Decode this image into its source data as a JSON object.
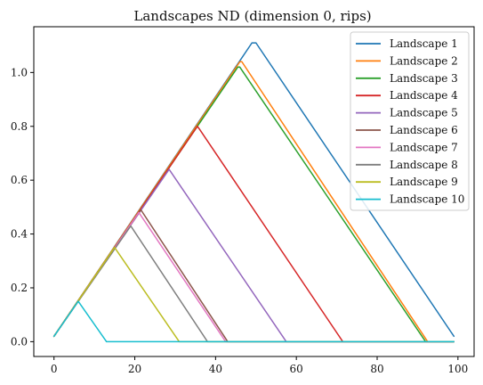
{
  "chart_data": {
    "type": "line",
    "title": "Landscapes ND (dimension 0, rips)",
    "xlabel": "",
    "ylabel": "",
    "xlim": [
      -5,
      104
    ],
    "ylim": [
      -0.055,
      1.17
    ],
    "x_ticks": [
      0,
      20,
      40,
      60,
      80,
      100
    ],
    "y_ticks": [
      0.0,
      0.2,
      0.4,
      0.6,
      0.8,
      1.0
    ],
    "x_tick_labels": [
      "0",
      "20",
      "40",
      "60",
      "80",
      "100"
    ],
    "y_tick_labels": [
      "0.0",
      "0.2",
      "0.4",
      "0.6",
      "0.8",
      "1.0"
    ],
    "grid": false,
    "legend_position": "top-right",
    "series": [
      {
        "name": "Landscape 1",
        "color": "#1f77b4",
        "x": [
          0,
          49,
          50,
          99
        ],
        "y": [
          0.02,
          1.11,
          1.11,
          0.02
        ]
      },
      {
        "name": "Landscape 2",
        "color": "#ff7f0e",
        "x": [
          0,
          46,
          46.5,
          92.5,
          99
        ],
        "y": [
          0.02,
          1.04,
          1.04,
          0.0,
          0.0
        ]
      },
      {
        "name": "Landscape 3",
        "color": "#2ca02c",
        "x": [
          0,
          45.5,
          46,
          92,
          99
        ],
        "y": [
          0.02,
          1.02,
          1.02,
          0.0,
          0.0
        ]
      },
      {
        "name": "Landscape 4",
        "color": "#d62728",
        "x": [
          0,
          35.5,
          36,
          71.5,
          99
        ],
        "y": [
          0.02,
          0.8,
          0.79,
          0.0,
          0.0
        ]
      },
      {
        "name": "Landscape 5",
        "color": "#9467bd",
        "x": [
          0,
          28.5,
          57.5,
          99
        ],
        "y": [
          0.02,
          0.64,
          0.0,
          0.0
        ]
      },
      {
        "name": "Landscape 6",
        "color": "#8c564b",
        "x": [
          0,
          21.5,
          43,
          99
        ],
        "y": [
          0.02,
          0.49,
          0.0,
          0.0
        ]
      },
      {
        "name": "Landscape 7",
        "color": "#e377c2",
        "x": [
          0,
          21,
          42.5,
          99
        ],
        "y": [
          0.02,
          0.48,
          0.0,
          0.0
        ]
      },
      {
        "name": "Landscape 8",
        "color": "#7f7f7f",
        "x": [
          0,
          19,
          38,
          99
        ],
        "y": [
          0.02,
          0.43,
          0.0,
          0.0
        ]
      },
      {
        "name": "Landscape 9",
        "color": "#bcbd22",
        "x": [
          0,
          15,
          31,
          99
        ],
        "y": [
          0.02,
          0.35,
          0.0,
          0.0
        ]
      },
      {
        "name": "Landscape 10",
        "color": "#17becf",
        "x": [
          0,
          6,
          13,
          99
        ],
        "y": [
          0.02,
          0.15,
          0.0,
          0.0
        ]
      }
    ]
  }
}
